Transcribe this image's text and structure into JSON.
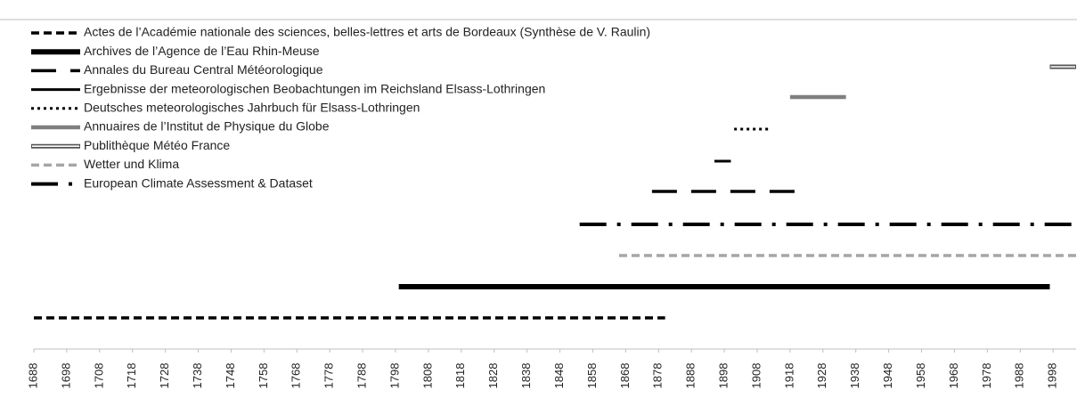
{
  "chart_data": {
    "type": "timeline",
    "series": [
      {
        "name": "Actes de l’Académie nationale des sciences, belles-lettres et arts de Bordeaux (Synthèse de V. Raulin)",
        "start": 1688,
        "end": 1880,
        "color": "#000000",
        "line_style": "dash"
      },
      {
        "name": "Archives de l’Agence de l’Eau Rhin-Meuse",
        "start": 1799,
        "end": 1997,
        "color": "#000000",
        "line_style": "thick"
      },
      {
        "name": "Annales du Bureau Central Météorologique",
        "start": 1876,
        "end": 1920,
        "color": "#000000",
        "line_style": "longdash"
      },
      {
        "name": "Ergebnisse der meteorologischen Beobachtungen im Reichsland Elsass-Lothringen",
        "start": 1895,
        "end": 1900,
        "color": "#000000",
        "line_style": "solid"
      },
      {
        "name": "Deutsches meteorologisches Jahrbuch für Elsass-Lothringen",
        "start": 1901,
        "end": 1912,
        "color": "#000000",
        "line_style": "dot"
      },
      {
        "name": "Annuaires de l’Institut de Physique du Globe",
        "start": 1918,
        "end": 1935,
        "color": "#7f7f7f",
        "line_style": "thick-gray"
      },
      {
        "name": "Publithèque Météo France",
        "start": 1997,
        "end": 2005,
        "color": "#555555",
        "line_style": "double"
      },
      {
        "name": "Wetter und Klima",
        "start": 1866,
        "end": 2005,
        "color": "#a6a6a6",
        "line_style": "dash"
      },
      {
        "name": "European Climate Assessment & Dataset",
        "start": 1854,
        "end": 2005,
        "color": "#000000",
        "line_style": "dashdot"
      }
    ],
    "xlim": [
      1688,
      2005
    ],
    "xticks": [
      1688,
      1698,
      1708,
      1718,
      1728,
      1738,
      1748,
      1758,
      1768,
      1778,
      1788,
      1798,
      1808,
      1818,
      1828,
      1838,
      1848,
      1858,
      1868,
      1878,
      1888,
      1898,
      1908,
      1918,
      1928,
      1938,
      1948,
      1958,
      1968,
      1978,
      1988,
      1998
    ],
    "legend": "top-left"
  }
}
